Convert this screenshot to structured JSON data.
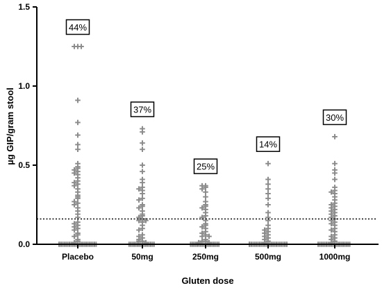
{
  "chart_data": {
    "type": "scatter",
    "title": "",
    "xlabel": "Gluten dose",
    "ylabel": "µg GIP/gram stool",
    "ylim": [
      0,
      1.5
    ],
    "yticks": [
      0.0,
      0.5,
      1.0,
      1.5
    ],
    "ytick_labels": [
      "0.0",
      "0.5",
      "1.0",
      "1.5"
    ],
    "categories": [
      "Placebo",
      "50mg",
      "250mg",
      "500mg",
      "1000mg"
    ],
    "percent_positive": [
      "44%",
      "37%",
      "25%",
      "14%",
      "30%"
    ],
    "threshold": 0.16,
    "threshold_style": "dotted",
    "marker": "plus",
    "colors": {
      "points": "#8c8c8c",
      "axis": "#000000",
      "threshold": "#000000"
    },
    "series": [
      {
        "category": "Placebo",
        "values": [
          1.25,
          1.25,
          1.25,
          0.91,
          0.77,
          0.69,
          0.63,
          0.6,
          0.51,
          0.49,
          0.48,
          0.47,
          0.46,
          0.45,
          0.44,
          0.42,
          0.4,
          0.39,
          0.38,
          0.37,
          0.35,
          0.33,
          0.31,
          0.3,
          0.29,
          0.27,
          0.26,
          0.25,
          0.23,
          0.21,
          0.19,
          0.17,
          0.14,
          0.13,
          0.12,
          0.11,
          0.1,
          0.09,
          0.07,
          0.06,
          0.05,
          0.03,
          0.02,
          0.01,
          0,
          0,
          0,
          0,
          0,
          0,
          0,
          0,
          0,
          0,
          0,
          0,
          0,
          0,
          0,
          0,
          0,
          0,
          0,
          0,
          0,
          0,
          0,
          0
        ]
      },
      {
        "category": "50mg",
        "values": [
          0.73,
          0.71,
          0.64,
          0.6,
          0.5,
          0.46,
          0.41,
          0.39,
          0.36,
          0.35,
          0.34,
          0.32,
          0.29,
          0.28,
          0.25,
          0.24,
          0.23,
          0.21,
          0.19,
          0.18,
          0.17,
          0.16,
          0.15,
          0.15,
          0.14,
          0.12,
          0.1,
          0.09,
          0.06,
          0.05,
          0.04,
          0.03,
          0.02,
          0.02,
          0.01,
          0,
          0,
          0,
          0,
          0,
          0,
          0,
          0,
          0,
          0,
          0,
          0,
          0,
          0,
          0,
          0
        ]
      },
      {
        "category": "250mg",
        "values": [
          0.37,
          0.37,
          0.36,
          0.35,
          0.33,
          0.3,
          0.27,
          0.25,
          0.24,
          0.23,
          0.22,
          0.2,
          0.18,
          0.17,
          0.15,
          0.13,
          0.12,
          0.11,
          0.1,
          0.08,
          0.07,
          0.06,
          0.05,
          0.05,
          0.03,
          0.02,
          0.02,
          0.01,
          0.01,
          0,
          0,
          0,
          0,
          0,
          0,
          0,
          0,
          0,
          0,
          0,
          0,
          0,
          0,
          0,
          0,
          0,
          0
        ]
      },
      {
        "category": "500mg",
        "values": [
          0.51,
          0.41,
          0.38,
          0.35,
          0.32,
          0.29,
          0.25,
          0.2,
          0.17,
          0.15,
          0.12,
          0.1,
          0.09,
          0.08,
          0.07,
          0.06,
          0.05,
          0.04,
          0.03,
          0.02,
          0.01,
          0,
          0,
          0,
          0,
          0,
          0,
          0,
          0,
          0,
          0,
          0,
          0,
          0,
          0,
          0,
          0,
          0,
          0,
          0,
          0,
          0,
          0,
          0,
          0,
          0,
          0
        ]
      },
      {
        "category": "1000mg",
        "values": [
          0.68,
          0.51,
          0.47,
          0.45,
          0.41,
          0.36,
          0.34,
          0.33,
          0.32,
          0.3,
          0.28,
          0.26,
          0.25,
          0.24,
          0.23,
          0.22,
          0.21,
          0.2,
          0.19,
          0.18,
          0.17,
          0.16,
          0.15,
          0.14,
          0.13,
          0.12,
          0.1,
          0.09,
          0.08,
          0.06,
          0.05,
          0.04,
          0.03,
          0.02,
          0.01,
          0,
          0,
          0,
          0,
          0,
          0,
          0,
          0,
          0,
          0,
          0,
          0,
          0,
          0,
          0,
          0,
          0,
          0,
          0,
          0
        ]
      }
    ]
  }
}
